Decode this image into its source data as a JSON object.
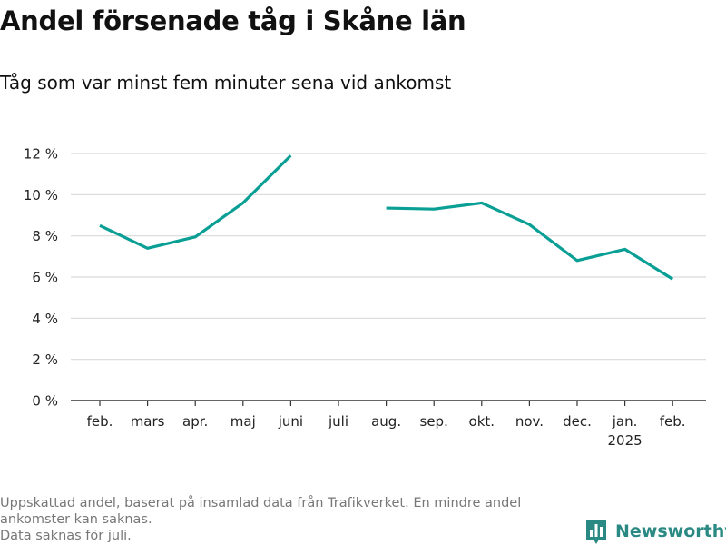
{
  "title": "Andel försenade tåg i Skåne län",
  "subtitle": "Tåg som var minst fem minuter sena vid ankomst",
  "colors": {
    "line": "#0a9f95",
    "grid": "#d9d9d9",
    "axis": "#333333",
    "brand": "#2a8a83"
  },
  "chart_data": {
    "type": "line",
    "title": "Andel försenade tåg i Skåne län",
    "xlabel": "",
    "ylabel": "",
    "categories": [
      "feb.",
      "mars",
      "apr.",
      "maj",
      "juni",
      "juli",
      "aug.",
      "sep.",
      "okt.",
      "nov.",
      "dec.",
      "jan.",
      "feb."
    ],
    "category_sublabels": [
      "",
      "",
      "",
      "",
      "",
      "",
      "",
      "",
      "",
      "",
      "",
      "2025",
      ""
    ],
    "values": [
      8.5,
      7.4,
      7.95,
      9.6,
      11.9,
      null,
      9.35,
      9.3,
      9.6,
      8.55,
      6.8,
      7.35,
      5.9
    ],
    "ylim": [
      0,
      12
    ],
    "yticks": [
      "0 %",
      "2 %",
      "4 %",
      "6 %",
      "8 %",
      "10 %",
      "12 %"
    ],
    "ytick_values": [
      0,
      2,
      4,
      6,
      8,
      10,
      12
    ],
    "grid": "horizontal",
    "legend": "none"
  },
  "footnote": {
    "line1": "Uppskattad andel, baserat på insamlad data från Trafikverket. En mindre andel",
    "line2": "ankomster kan saknas.",
    "line3": "Data saknas för juli."
  },
  "brand": {
    "name": "Newsworthy",
    "icon": "bar-chart-logo-icon"
  }
}
